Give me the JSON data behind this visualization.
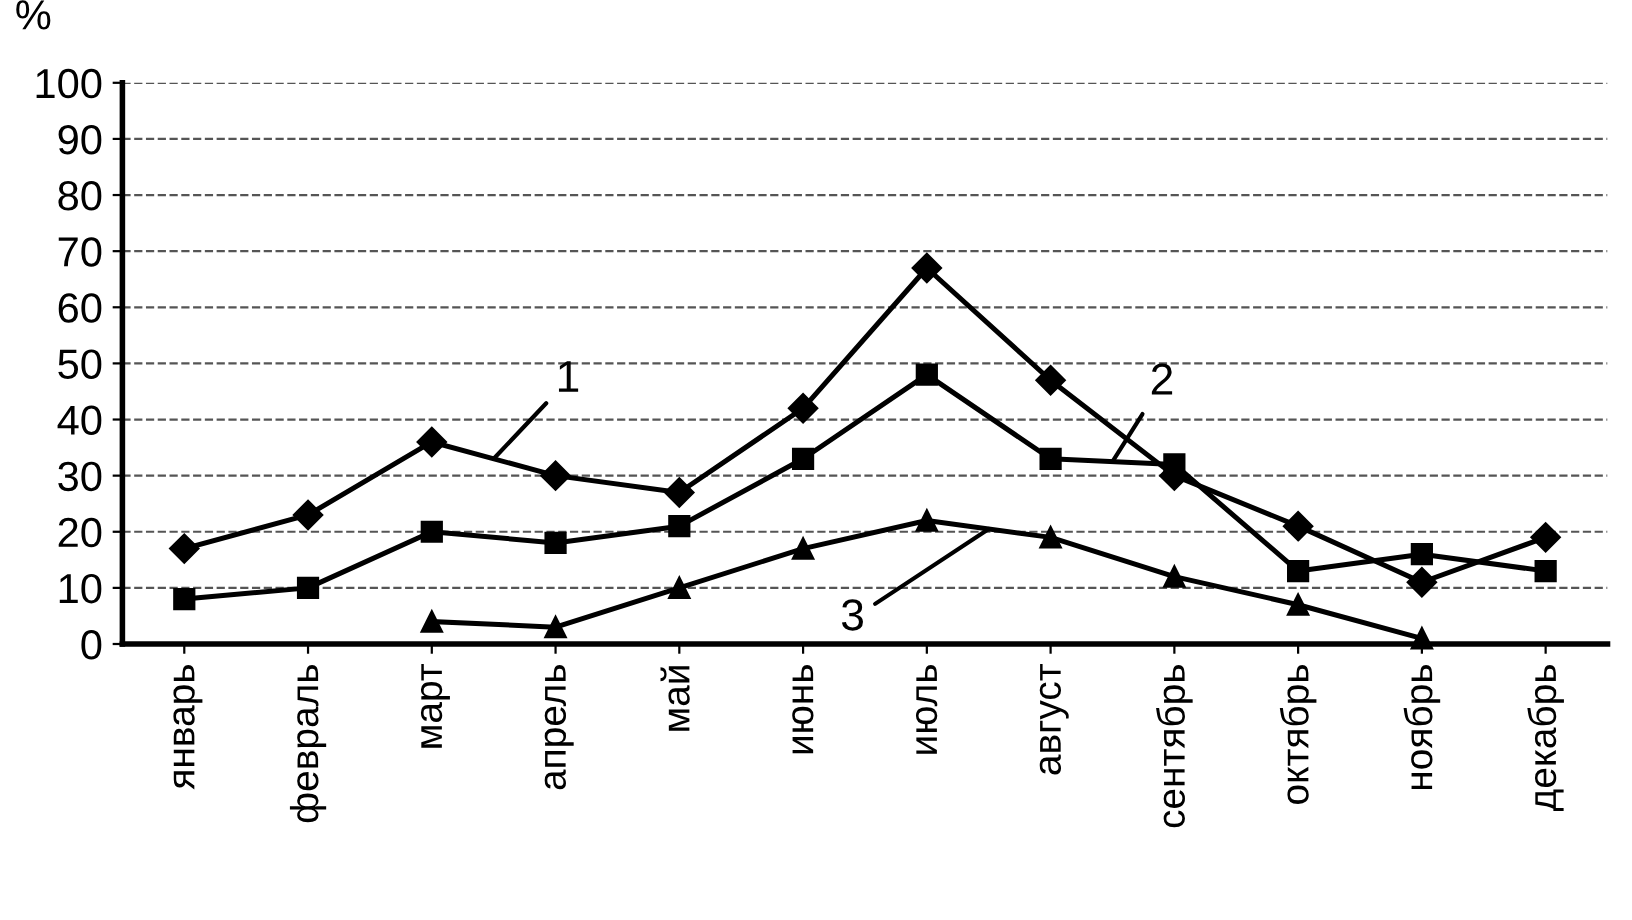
{
  "chart_data": {
    "type": "line",
    "ylabel": "%",
    "categories": [
      "январь",
      "февраль",
      "март",
      "апрель",
      "май",
      "июнь",
      "июль",
      "август",
      "сентябрь",
      "октябрь",
      "ноябрь",
      "декабрь"
    ],
    "series": [
      {
        "name": "1",
        "color": "#000000",
        "marker": "diamond",
        "values": [
          17,
          23,
          36,
          30,
          27,
          42,
          67,
          47,
          30,
          21,
          11,
          19
        ]
      },
      {
        "name": "2",
        "color": "#000000",
        "marker": "square",
        "values": [
          8,
          10,
          20,
          18,
          21,
          33,
          48,
          33,
          32,
          13,
          16,
          13
        ]
      },
      {
        "name": "3",
        "color": "#000000",
        "marker": "triangle",
        "values": [
          null,
          null,
          4,
          3,
          10,
          17,
          22,
          19,
          12,
          7,
          1,
          null
        ]
      }
    ],
    "ylim": [
      0,
      100
    ],
    "yticks": [
      0,
      10,
      20,
      30,
      40,
      50,
      60,
      70,
      80,
      90,
      100
    ],
    "grid": "y",
    "legend": false,
    "line_style": "solid"
  }
}
